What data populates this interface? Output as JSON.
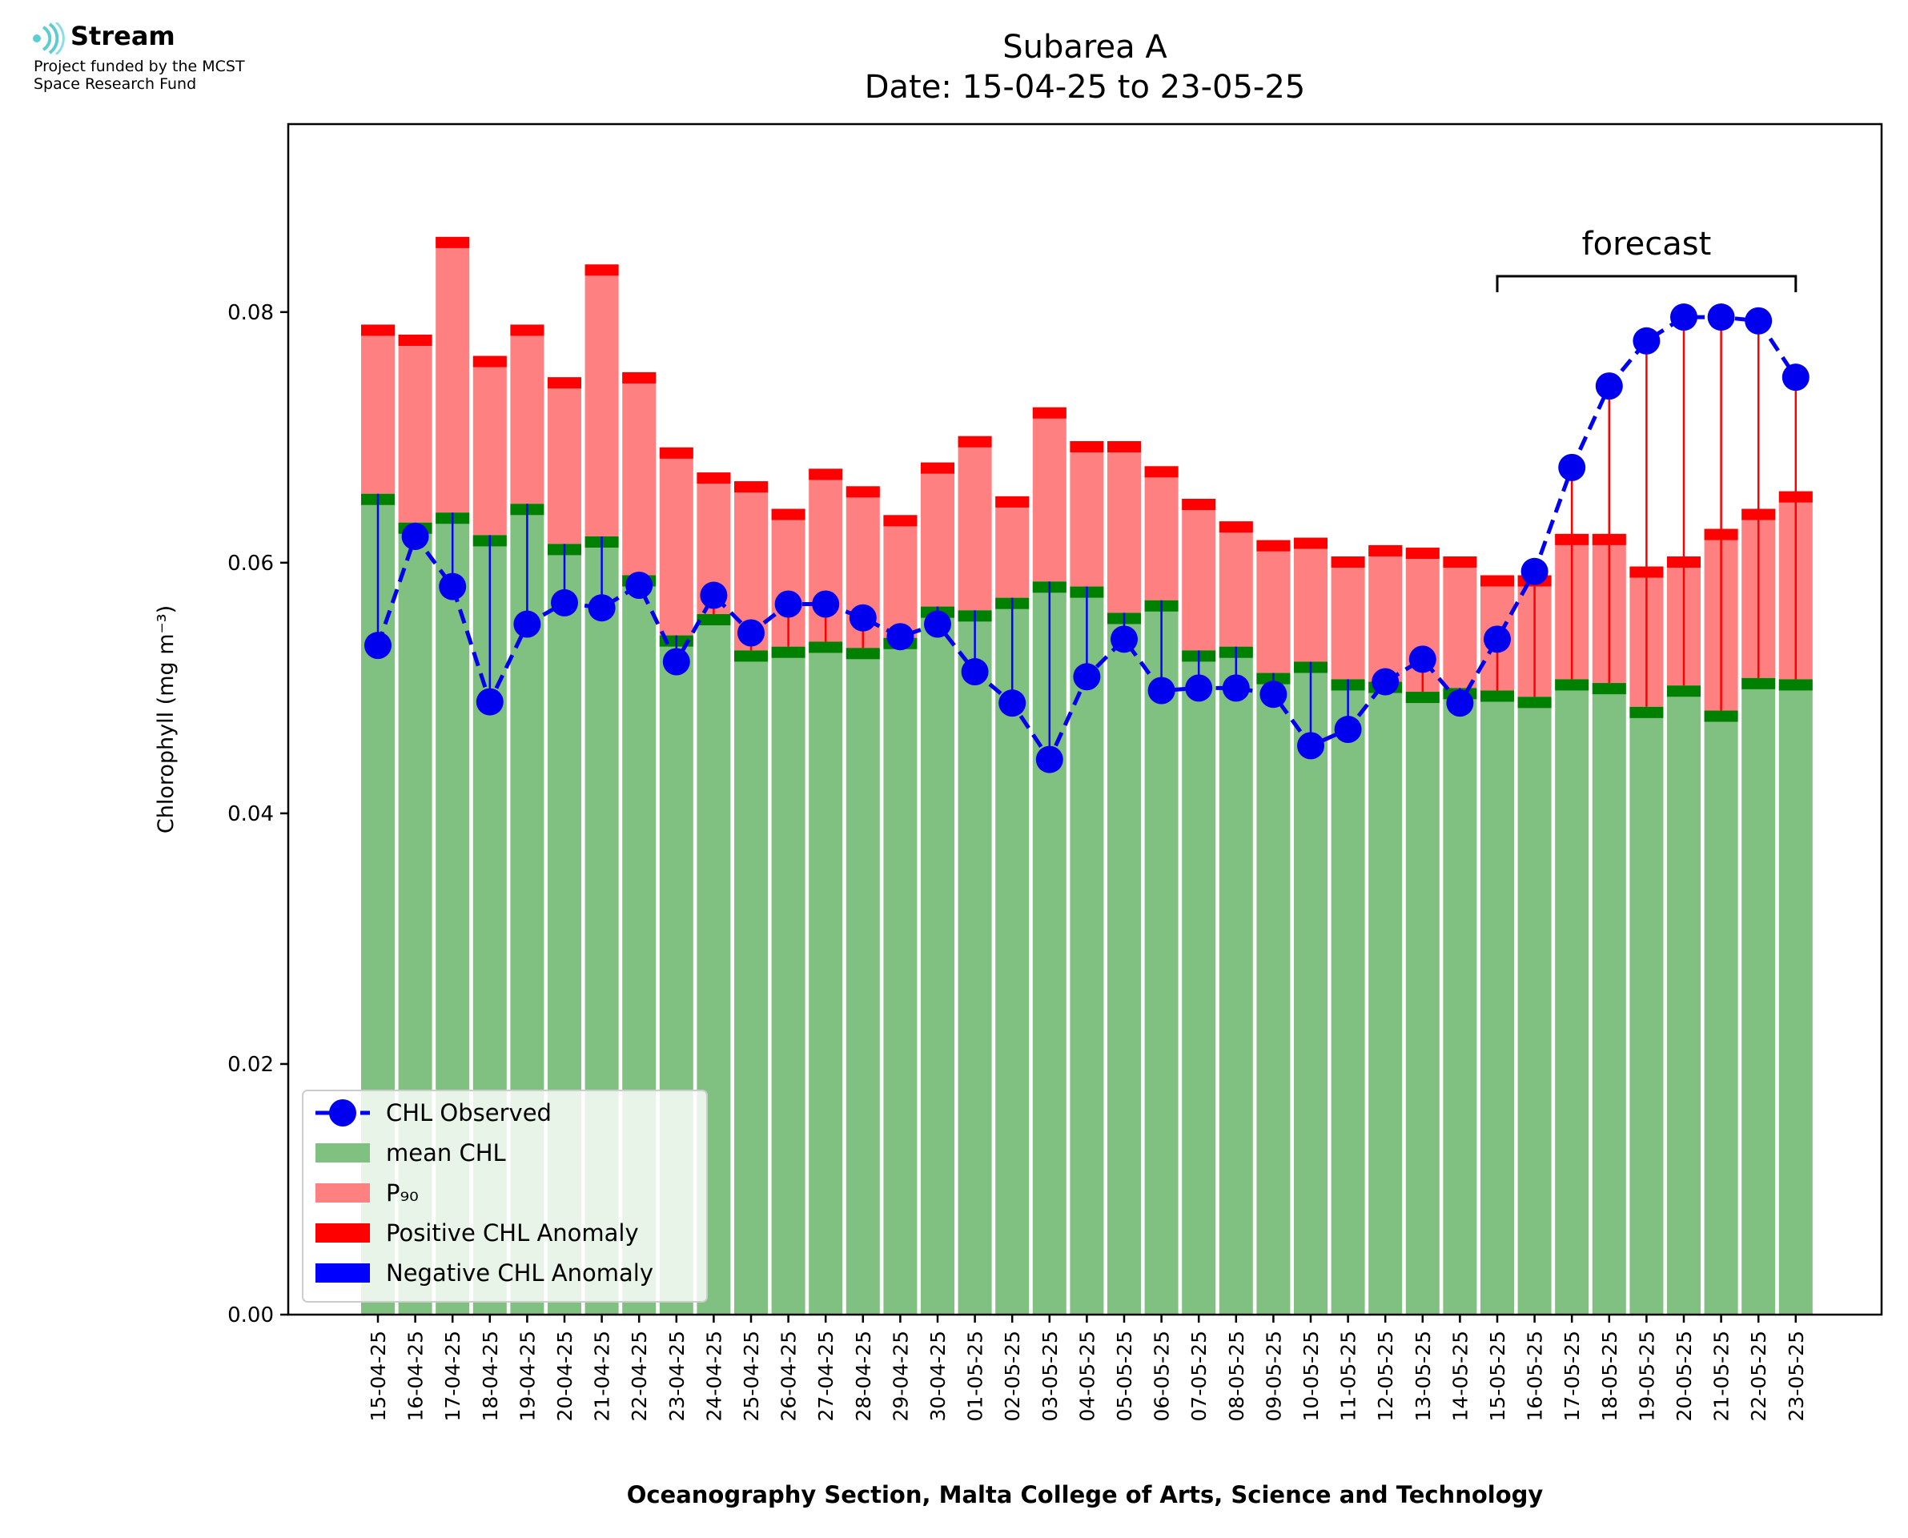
{
  "logo": {
    "brand": "Stream",
    "fund_line1": "Project funded by the MCST",
    "fund_line2": "Space Research Fund"
  },
  "chart_data": {
    "type": "bar",
    "title": "Subarea A",
    "subtitle": "Date: 15-04-25 to 23-05-25",
    "xlabel": "Oceanography Section, Malta College of Arts, Science and Technology",
    "ylabel": "Chlorophyll (mg m⁻³)",
    "ylim": [
      0,
      0.095
    ],
    "yticks": [
      "0.00",
      "0.02",
      "0.04",
      "0.06",
      "0.08"
    ],
    "ytick_values": [
      0,
      0.02,
      0.04,
      0.06,
      0.08
    ],
    "categories": [
      "15-04-25",
      "16-04-25",
      "17-04-25",
      "18-04-25",
      "19-04-25",
      "20-04-25",
      "21-04-25",
      "22-04-25",
      "23-04-25",
      "24-04-25",
      "25-04-25",
      "26-04-25",
      "27-04-25",
      "28-04-25",
      "29-04-25",
      "30-04-25",
      "01-05-25",
      "02-05-25",
      "03-05-25",
      "04-05-25",
      "05-05-25",
      "06-05-25",
      "07-05-25",
      "08-05-25",
      "09-05-25",
      "10-05-25",
      "11-05-25",
      "12-05-25",
      "13-05-25",
      "14-05-25",
      "15-05-25",
      "16-05-25",
      "17-05-25",
      "18-05-25",
      "19-05-25",
      "20-05-25",
      "21-05-25",
      "22-05-25",
      "23-05-25"
    ],
    "series": [
      {
        "name": "mean CHL",
        "color": "#80c080",
        "values": [
          0.0655,
          0.0632,
          0.064,
          0.0622,
          0.0647,
          0.0615,
          0.0621,
          0.059,
          0.0542,
          0.0559,
          0.053,
          0.0533,
          0.0537,
          0.0532,
          0.054,
          0.0565,
          0.0562,
          0.0572,
          0.0585,
          0.0581,
          0.056,
          0.057,
          0.053,
          0.0533,
          0.0512,
          0.0521,
          0.0507,
          0.0505,
          0.0497,
          0.05,
          0.0498,
          0.0493,
          0.0507,
          0.0504,
          0.0485,
          0.0502,
          0.0482,
          0.0508,
          0.0507
        ]
      },
      {
        "name": "P₉₀",
        "color": "#ff8080",
        "values": [
          0.079,
          0.0782,
          0.086,
          0.0765,
          0.079,
          0.0748,
          0.0838,
          0.0752,
          0.0692,
          0.0672,
          0.0665,
          0.0643,
          0.0675,
          0.0661,
          0.0638,
          0.068,
          0.0701,
          0.0653,
          0.0724,
          0.0697,
          0.0697,
          0.0677,
          0.0651,
          0.0633,
          0.0618,
          0.062,
          0.0605,
          0.0614,
          0.0612,
          0.0605,
          0.059,
          0.059,
          0.0623,
          0.0623,
          0.0597,
          0.0605,
          0.0627,
          0.0643,
          0.0657
        ]
      },
      {
        "name": "CHL Observed",
        "color": "#0000ee",
        "values": [
          0.0534,
          0.0621,
          0.0581,
          0.0489,
          0.0551,
          0.0568,
          0.0564,
          0.0582,
          0.0521,
          0.0574,
          0.0544,
          0.0567,
          0.0567,
          0.0556,
          0.0541,
          0.0551,
          0.0513,
          0.0488,
          0.0443,
          0.0509,
          0.0539,
          0.0498,
          0.05,
          0.05,
          0.0495,
          0.0454,
          0.0467,
          0.0505,
          0.0523,
          0.0488,
          0.0539,
          0.0593,
          0.0676,
          0.0741,
          0.0777,
          0.0796,
          0.0796,
          0.0793,
          0.0748
        ]
      }
    ],
    "legend": {
      "position": "lower-left",
      "entries": [
        "CHL Observed",
        "mean CHL",
        "P₉₀",
        "Positive CHL Anomaly",
        "Negative CHL Anomaly"
      ]
    },
    "anomaly_colors": {
      "positive": "#ff0000",
      "negative": "#0000ff"
    },
    "annotation": {
      "label": "forecast",
      "from": "15-05-25",
      "to": "23-05-25"
    },
    "grid": false
  }
}
